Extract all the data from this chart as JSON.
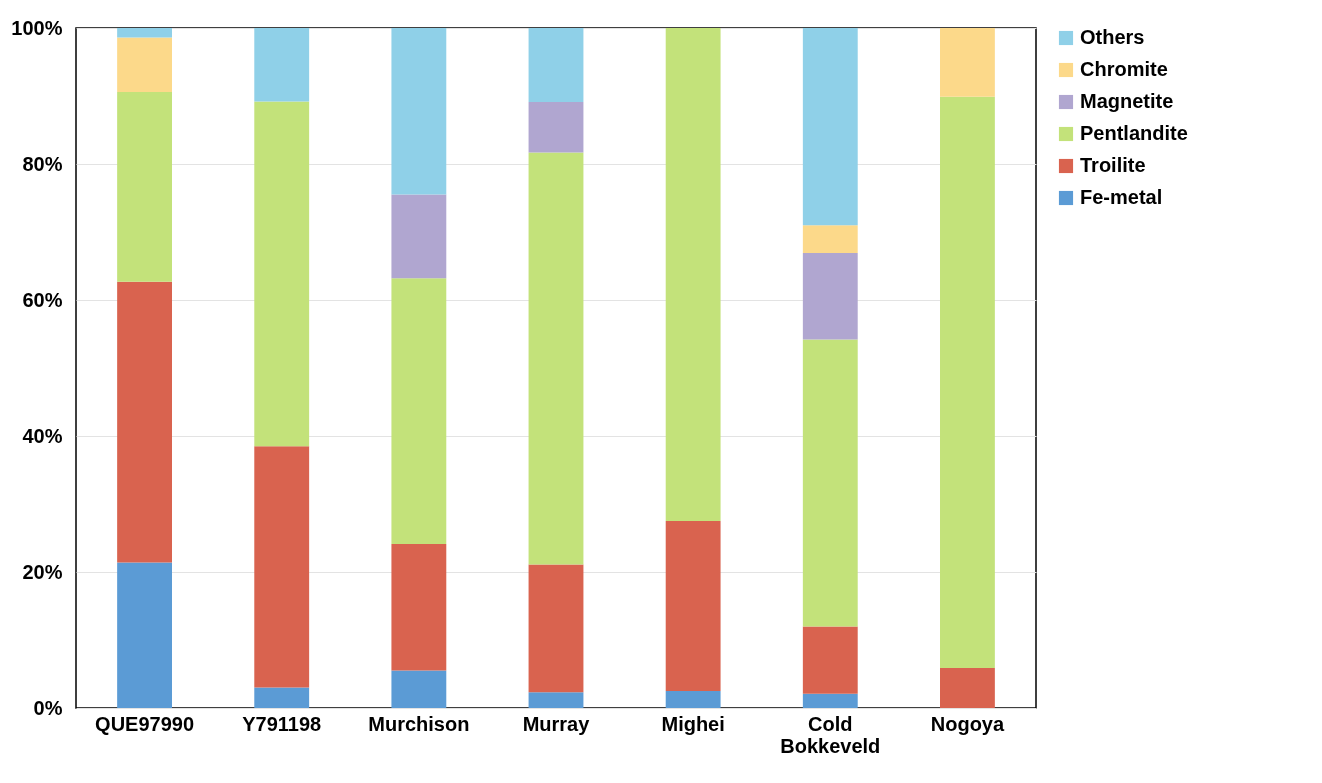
{
  "chart_data": {
    "type": "bar",
    "stacked": true,
    "categories": [
      "QUE97990",
      "Y791198",
      "Murchison",
      "Murray",
      "Mighei",
      "Cold Bokkeveld",
      "Nogoya"
    ],
    "series": [
      {
        "name": "Fe-metal",
        "color": "#5b9bd5",
        "values": [
          21.4,
          3.0,
          5.5,
          2.3,
          2.5,
          2.1,
          null
        ]
      },
      {
        "name": "Troilite",
        "color": "#d9634f",
        "values": [
          41.3,
          35.5,
          18.6,
          18.8,
          25.0,
          9.9,
          5.9
        ]
      },
      {
        "name": "Pentlandite",
        "color": "#c3e27a",
        "values": [
          27.9,
          50.7,
          39.1,
          60.6,
          72.5,
          42.2,
          84.0
        ]
      },
      {
        "name": "Magnetite",
        "color": "#b0a6d0",
        "values": [
          null,
          null,
          12.3,
          7.4,
          null,
          12.7,
          null
        ]
      },
      {
        "name": "Chromite",
        "color": "#fcd98a",
        "values": [
          8.0,
          null,
          null,
          null,
          null,
          4.1,
          10.1
        ]
      },
      {
        "name": "Others",
        "color": "#8fd0e8",
        "values": [
          1.4,
          10.8,
          24.5,
          10.9,
          null,
          29.0,
          null
        ]
      }
    ],
    "ylim": [
      0,
      100
    ],
    "yticks": [
      {
        "value": 0,
        "label": "0%"
      },
      {
        "value": 20,
        "label": "20%"
      },
      {
        "value": 40,
        "label": "40%"
      },
      {
        "value": 60,
        "label": "60%"
      },
      {
        "value": 80,
        "label": "80%"
      },
      {
        "value": 100,
        "label": "100%"
      }
    ],
    "grid": "y",
    "legend": "right"
  }
}
